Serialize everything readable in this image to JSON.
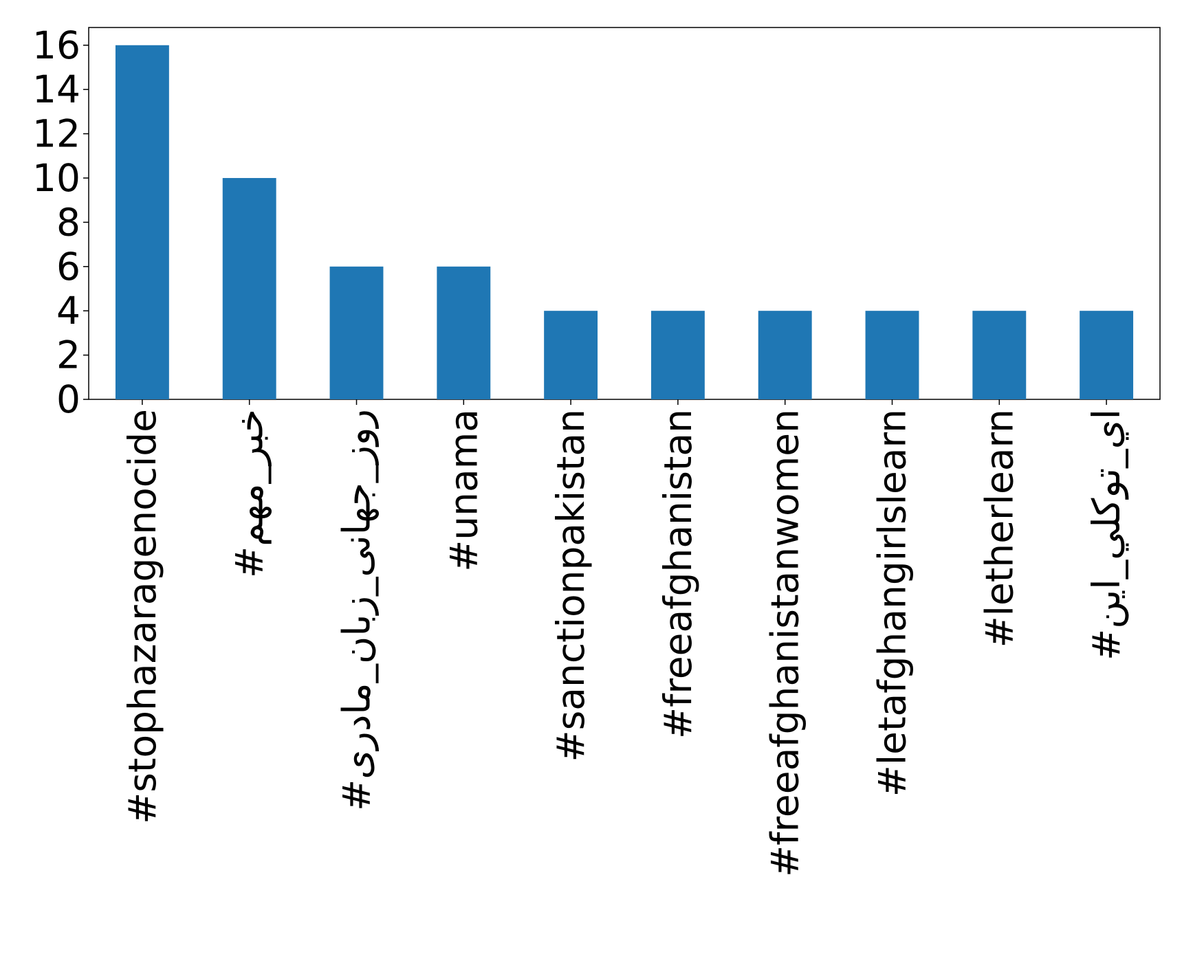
{
  "chart_data": {
    "type": "bar",
    "categories": [
      "#stophazaragenocide",
      "#خبر_مهم",
      "#روز_جهانی_زبان_مادری",
      "#unama",
      "#sanctionpakistan",
      "#freeafghanistan",
      "#freeafghanistanwomen",
      "#letafghangirlslearn",
      "#letherlearn",
      "#اي_توكلي_اين"
    ],
    "values": [
      16,
      10,
      6,
      6,
      4,
      4,
      4,
      4,
      4,
      4
    ],
    "color": "#1f77b4",
    "ylim": [
      0,
      16.8
    ],
    "yticks": [
      0,
      2,
      4,
      6,
      8,
      10,
      12,
      14,
      16
    ],
    "grid": false
  }
}
